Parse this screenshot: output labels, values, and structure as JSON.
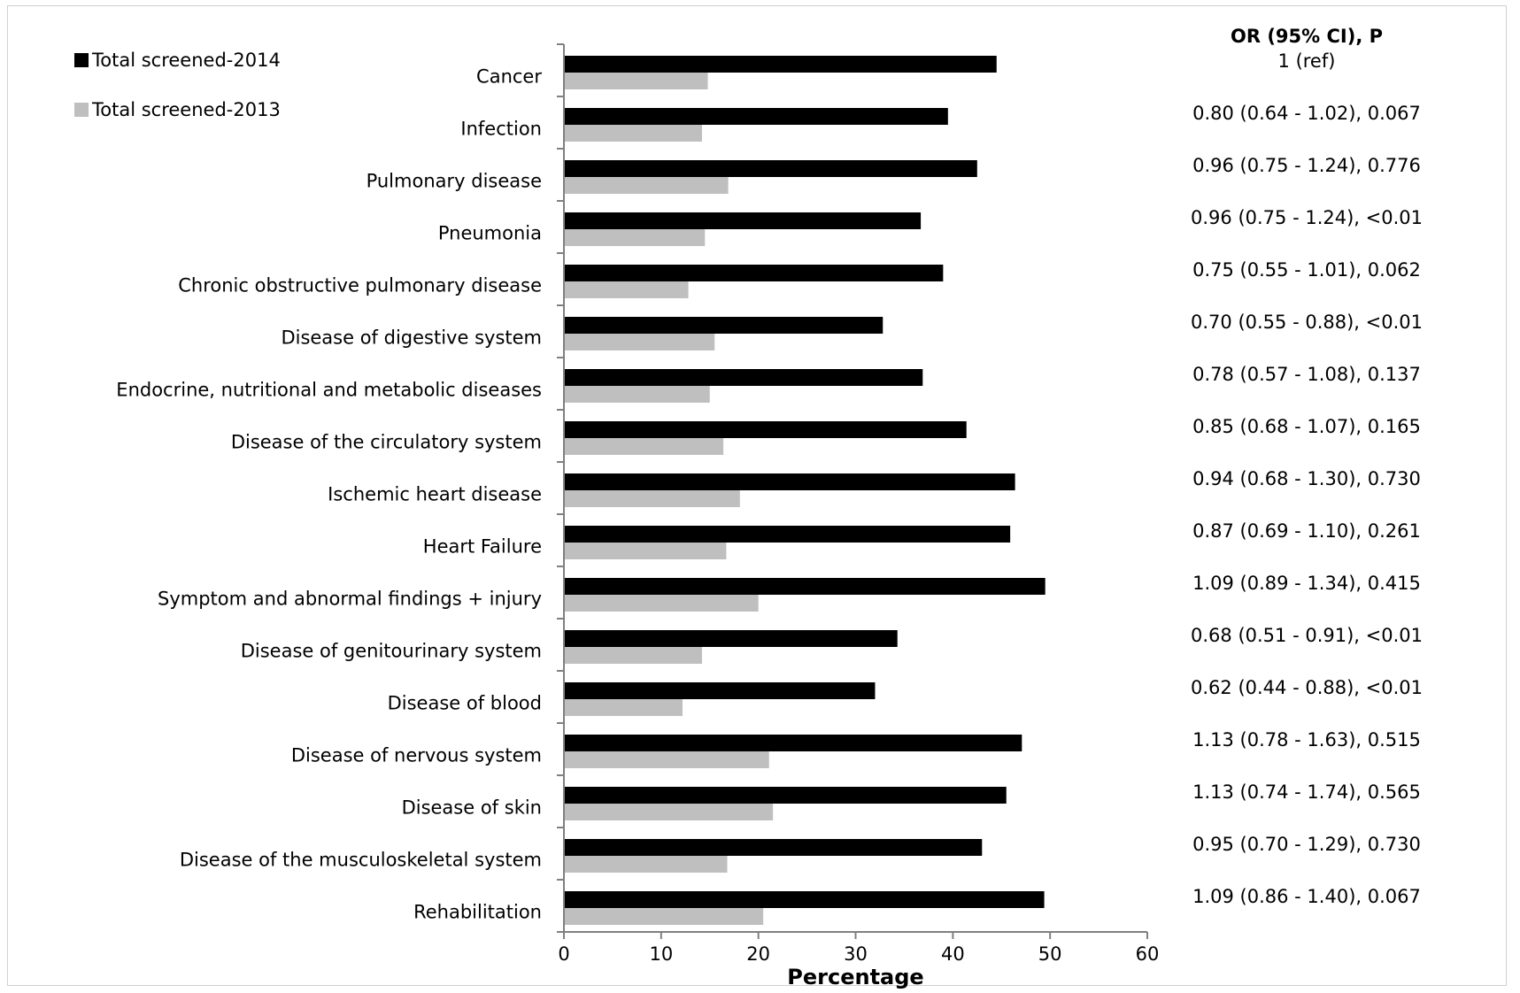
{
  "chart_data": {
    "type": "bar",
    "orientation": "horizontal",
    "categories": [
      "Cancer",
      "Infection",
      "Pulmonary disease",
      "Pneumonia",
      "Chronic obstructive pulmonary disease",
      "Disease of digestive system",
      "Endocrine, nutritional and metabolic diseases",
      "Disease of the circulatory system",
      "Ischemic heart disease",
      "Heart Failure",
      "Symptom and abnormal findings + injury",
      "Disease of genitourinary system",
      "Disease of blood",
      "Disease of nervous system",
      "Disease of skin",
      "Disease of the musculoskeletal system",
      "Rehabilitation"
    ],
    "series": [
      {
        "name": "Total screened-2014",
        "color": "#000000",
        "values": [
          44.5,
          39.5,
          42.5,
          36.7,
          39.0,
          32.8,
          36.9,
          41.4,
          46.4,
          45.9,
          49.5,
          34.3,
          32.0,
          47.1,
          45.5,
          43.0,
          49.4
        ]
      },
      {
        "name": "Total screened-2013",
        "color": "#bfbfbf",
        "values": [
          14.8,
          14.2,
          16.9,
          14.5,
          12.8,
          15.5,
          15.0,
          16.4,
          18.1,
          16.7,
          20.0,
          14.2,
          12.2,
          21.1,
          21.5,
          16.8,
          20.5
        ]
      }
    ],
    "xlabel": "Percentage",
    "xlim": [
      0,
      60
    ],
    "xticks": [
      "0",
      "10",
      "20",
      "30",
      "40",
      "50",
      "60"
    ],
    "grid": false,
    "legend_position": "top-left",
    "or_header": "OR (95% CI), P",
    "or_values": [
      "1 (ref)",
      "0.80 (0.64 - 1.02),  0.067",
      "0.96 (0.75 - 1.24),  0.776",
      "0.96 (0.75 - 1.24),  <0.01",
      "0.75 (0.55 - 1.01),  0.062",
      "0.70 (0.55 - 0.88),  <0.01",
      "0.78 (0.57 - 1.08),  0.137",
      "0.85 (0.68 - 1.07),  0.165",
      "0.94 (0.68 - 1.30),  0.730",
      "0.87 (0.69 - 1.10),  0.261",
      "1.09 (0.89 - 1.34),  0.415",
      "0.68 (0.51 - 0.91),  <0.01",
      "0.62 (0.44 - 0.88),  <0.01",
      "1.13 (0.78 - 1.63), 0.515",
      "1.13 (0.74 - 1.74), 0.565",
      "0.95 (0.70 - 1.29),  0.730",
      "1.09 (0.86 - 1.40),  0.067"
    ]
  }
}
